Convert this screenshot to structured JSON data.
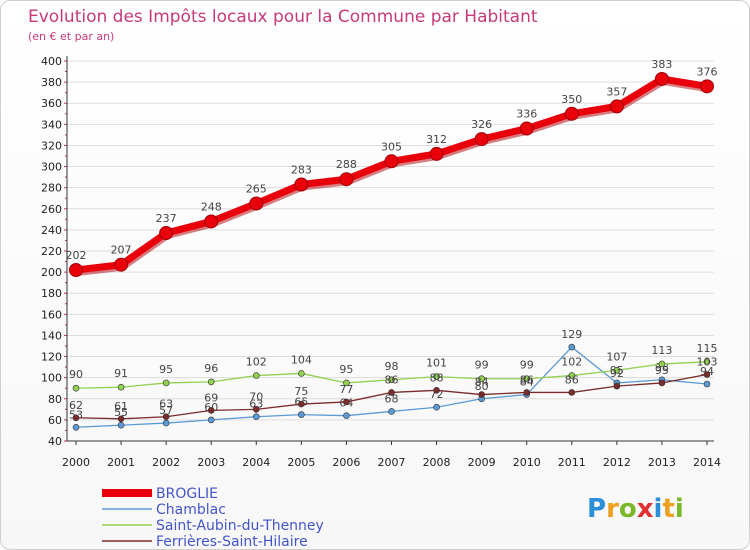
{
  "chart_data": {
    "type": "line",
    "title": "Evolution des Impôts locaux pour la Commune par Habitant",
    "subtitle": "(en € et par an)",
    "xlabel": "",
    "ylabel": "",
    "ylim": [
      40,
      400
    ],
    "yticks": [
      40,
      60,
      80,
      100,
      120,
      140,
      160,
      180,
      200,
      220,
      240,
      260,
      280,
      300,
      320,
      340,
      360,
      380,
      400
    ],
    "categories": [
      "2000",
      "2001",
      "2002",
      "2003",
      "2004",
      "2005",
      "2006",
      "2007",
      "2008",
      "2009",
      "2010",
      "2011",
      "2012",
      "2013",
      "2014"
    ],
    "grid": "horizontal",
    "legend_position": "bottom-left",
    "series": [
      {
        "name": "BROGLIE",
        "color": "#e8000b",
        "values": [
          202,
          207,
          237,
          248,
          265,
          283,
          288,
          305,
          312,
          326,
          336,
          350,
          357,
          383,
          376
        ]
      },
      {
        "name": "Chamblac",
        "color": "#5b9bd5",
        "values": [
          53,
          55,
          57,
          60,
          63,
          65,
          64,
          68,
          72,
          80,
          84,
          129,
          95,
          98,
          94
        ]
      },
      {
        "name": "Saint-Aubin-du-Thenney",
        "color": "#92d050",
        "values": [
          90,
          91,
          95,
          96,
          102,
          104,
          95,
          98,
          101,
          99,
          99,
          102,
          107,
          113,
          115
        ]
      },
      {
        "name": "Ferrières-Saint-Hilaire",
        "color": "#7a2b2b",
        "values": [
          62,
          61,
          63,
          69,
          70,
          75,
          77,
          86,
          88,
          84,
          86,
          86,
          92,
          95,
          103
        ]
      }
    ]
  },
  "logo": {
    "letters": [
      "P",
      "r",
      "o",
      "x",
      "i",
      "t",
      "i"
    ],
    "colors": [
      "#2a8fd8",
      "#f0a020",
      "#7ab82a",
      "#e03030",
      "#2a8fd8",
      "#f0a020",
      "#7ab82a"
    ]
  }
}
